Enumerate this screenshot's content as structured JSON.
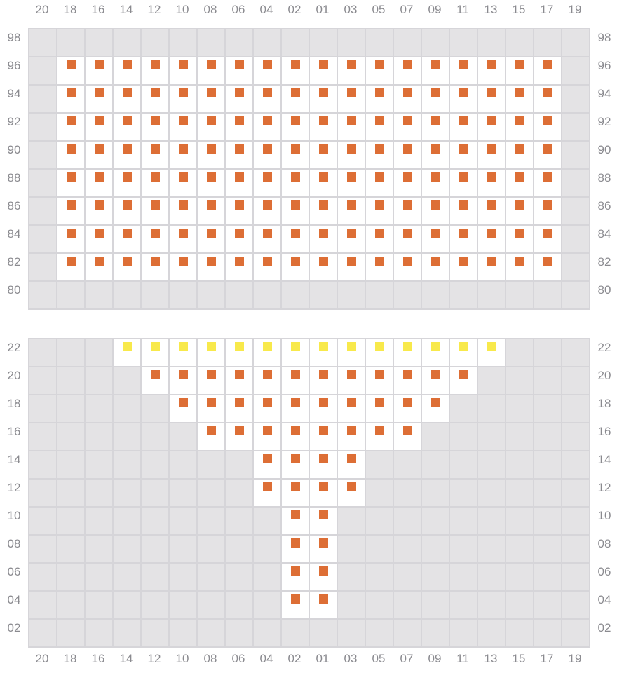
{
  "palette": {
    "background": "#ffffff",
    "cell_empty": "#e4e3e5",
    "grid_line": "#d6d5d9",
    "label_color": "#8a8a8f",
    "seat_orange": "#dd6e35",
    "seat_yellow": "#f8e94b"
  },
  "columns": [
    "20",
    "18",
    "16",
    "14",
    "12",
    "10",
    "08",
    "06",
    "04",
    "02",
    "01",
    "03",
    "05",
    "07",
    "09",
    "11",
    "13",
    "15",
    "17",
    "19"
  ],
  "sections": [
    {
      "name": "upper-block",
      "rows": [
        {
          "label": "98",
          "color": null,
          "seats": []
        },
        {
          "label": "96",
          "color": "orange",
          "seats": [
            "18",
            "16",
            "14",
            "12",
            "10",
            "08",
            "06",
            "04",
            "02",
            "01",
            "03",
            "05",
            "07",
            "09",
            "11",
            "13",
            "15",
            "17"
          ]
        },
        {
          "label": "94",
          "color": "orange",
          "seats": [
            "18",
            "16",
            "14",
            "12",
            "10",
            "08",
            "06",
            "04",
            "02",
            "01",
            "03",
            "05",
            "07",
            "09",
            "11",
            "13",
            "15",
            "17"
          ]
        },
        {
          "label": "92",
          "color": "orange",
          "seats": [
            "18",
            "16",
            "14",
            "12",
            "10",
            "08",
            "06",
            "04",
            "02",
            "01",
            "03",
            "05",
            "07",
            "09",
            "11",
            "13",
            "15",
            "17"
          ]
        },
        {
          "label": "90",
          "color": "orange",
          "seats": [
            "18",
            "16",
            "14",
            "12",
            "10",
            "08",
            "06",
            "04",
            "02",
            "01",
            "03",
            "05",
            "07",
            "09",
            "11",
            "13",
            "15",
            "17"
          ]
        },
        {
          "label": "88",
          "color": "orange",
          "seats": [
            "18",
            "16",
            "14",
            "12",
            "10",
            "08",
            "06",
            "04",
            "02",
            "01",
            "03",
            "05",
            "07",
            "09",
            "11",
            "13",
            "15",
            "17"
          ]
        },
        {
          "label": "86",
          "color": "orange",
          "seats": [
            "18",
            "16",
            "14",
            "12",
            "10",
            "08",
            "06",
            "04",
            "02",
            "01",
            "03",
            "05",
            "07",
            "09",
            "11",
            "13",
            "15",
            "17"
          ]
        },
        {
          "label": "84",
          "color": "orange",
          "seats": [
            "18",
            "16",
            "14",
            "12",
            "10",
            "08",
            "06",
            "04",
            "02",
            "01",
            "03",
            "05",
            "07",
            "09",
            "11",
            "13",
            "15",
            "17"
          ]
        },
        {
          "label": "82",
          "color": "orange",
          "seats": [
            "18",
            "16",
            "14",
            "12",
            "10",
            "08",
            "06",
            "04",
            "02",
            "01",
            "03",
            "05",
            "07",
            "09",
            "11",
            "13",
            "15",
            "17"
          ]
        },
        {
          "label": "80",
          "color": null,
          "seats": []
        }
      ]
    },
    {
      "name": "lower-block",
      "rows": [
        {
          "label": "22",
          "color": "yellow",
          "seats": [
            "14",
            "12",
            "10",
            "08",
            "06",
            "04",
            "02",
            "01",
            "03",
            "05",
            "07",
            "09",
            "11",
            "13"
          ]
        },
        {
          "label": "20",
          "color": "orange",
          "seats": [
            "12",
            "10",
            "08",
            "06",
            "04",
            "02",
            "01",
            "03",
            "05",
            "07",
            "09",
            "11"
          ]
        },
        {
          "label": "18",
          "color": "orange",
          "seats": [
            "10",
            "08",
            "06",
            "04",
            "02",
            "01",
            "03",
            "05",
            "07",
            "09"
          ]
        },
        {
          "label": "16",
          "color": "orange",
          "seats": [
            "08",
            "06",
            "04",
            "02",
            "01",
            "03",
            "05",
            "07"
          ]
        },
        {
          "label": "14",
          "color": "orange",
          "seats": [
            "04",
            "02",
            "01",
            "03"
          ]
        },
        {
          "label": "12",
          "color": "orange",
          "seats": [
            "04",
            "02",
            "01",
            "03"
          ]
        },
        {
          "label": "10",
          "color": "orange",
          "seats": [
            "02",
            "01"
          ]
        },
        {
          "label": "08",
          "color": "orange",
          "seats": [
            "02",
            "01"
          ]
        },
        {
          "label": "06",
          "color": "orange",
          "seats": [
            "02",
            "01"
          ]
        },
        {
          "label": "04",
          "color": "orange",
          "seats": [
            "02",
            "01"
          ]
        },
        {
          "label": "02",
          "color": null,
          "seats": []
        }
      ]
    }
  ]
}
